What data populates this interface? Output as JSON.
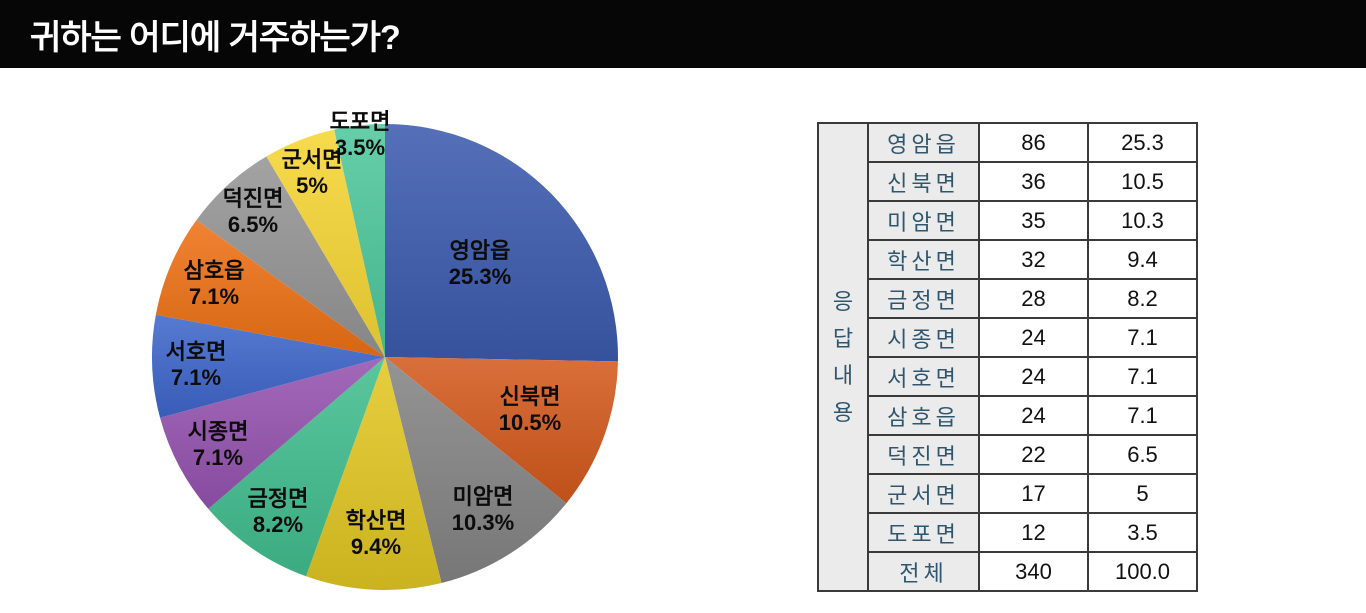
{
  "header": {
    "title": "귀하는 어디에 거주하는가?"
  },
  "chart_data": {
    "type": "pie",
    "title": "귀하는 어디에 거주하는가?",
    "start_angle_deg": 0,
    "direction": "clockwise",
    "legend_position": "labels-on-slices",
    "slices": [
      {
        "label": "영암읍",
        "count": 86,
        "pct": 25.3,
        "pct_label": "25.3%",
        "color": "#3c5bae",
        "label_r": 0.57
      },
      {
        "label": "신북면",
        "count": 36,
        "pct": 10.5,
        "pct_label": "10.5%",
        "color": "#d3591c",
        "label_r": 0.66
      },
      {
        "label": "미암면",
        "count": 35,
        "pct": 10.3,
        "pct_label": "10.3%",
        "color": "#848484",
        "label_r": 0.78
      },
      {
        "label": "학산면",
        "count": 32,
        "pct": 9.4,
        "pct_label": "9.4%",
        "color": "#e2c722",
        "label_r": 0.76
      },
      {
        "label": "금정면",
        "count": 28,
        "pct": 8.2,
        "pct_label": "8.2%",
        "color": "#41be8e",
        "label_r": 0.81
      },
      {
        "label": "시종면",
        "count": 24,
        "pct": 7.1,
        "pct_label": "7.1%",
        "color": "#9553af",
        "label_r": 0.81
      },
      {
        "label": "서호면",
        "count": 24,
        "pct": 7.1,
        "pct_label": "7.1%",
        "color": "#3e66cb",
        "label_r": 0.81
      },
      {
        "label": "삼호읍",
        "count": 24,
        "pct": 7.1,
        "pct_label": "7.1%",
        "color": "#ee7115",
        "label_r": 0.8
      },
      {
        "label": "덕진면",
        "count": 22,
        "pct": 6.5,
        "pct_label": "6.5%",
        "color": "#959595",
        "label_r": 0.84
      },
      {
        "label": "군서면",
        "count": 17,
        "pct": 5.0,
        "pct_label": "5%",
        "color": "#f6d634",
        "label_r": 0.85
      },
      {
        "label": "도포면",
        "count": 12,
        "pct": 3.5,
        "pct_label": "3.5%",
        "color": "#4ec89d",
        "label_r": 0.96
      }
    ]
  },
  "table": {
    "group_label": "응\n답\n내\n용",
    "rows": [
      {
        "label": "영암읍",
        "count": "86",
        "pct": "25.3"
      },
      {
        "label": "신북면",
        "count": "36",
        "pct": "10.5"
      },
      {
        "label": "미암면",
        "count": "35",
        "pct": "10.3"
      },
      {
        "label": "학산면",
        "count": "32",
        "pct": "9.4"
      },
      {
        "label": "금정면",
        "count": "28",
        "pct": "8.2"
      },
      {
        "label": "시종면",
        "count": "24",
        "pct": "7.1"
      },
      {
        "label": "서호면",
        "count": "24",
        "pct": "7.1"
      },
      {
        "label": "삼호읍",
        "count": "24",
        "pct": "7.1"
      },
      {
        "label": "덕진면",
        "count": "22",
        "pct": "6.5"
      },
      {
        "label": "군서면",
        "count": "17",
        "pct": "5"
      },
      {
        "label": "도포면",
        "count": "12",
        "pct": "3.5"
      }
    ],
    "total_row": {
      "label": "전체",
      "count": "340",
      "pct": "100.0"
    }
  },
  "colors": {
    "header_bg": "#060606",
    "header_text": "#ffffff",
    "table_cell_gray": "#ebebeb",
    "table_name_text": "#2f566c",
    "table_border": "#3a3a3a",
    "pie_label_text": "#0c0c0c"
  }
}
